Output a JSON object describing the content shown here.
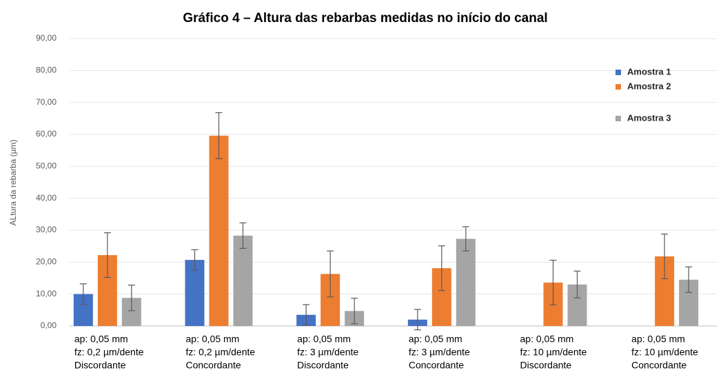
{
  "chart_data": {
    "type": "bar",
    "title": "Gráfico 4 – Altura das rebarbas medidas no início do canal",
    "y_label": "ALtura da rebarba (µm)",
    "categories": [
      [
        "ap: 0,05 mm",
        "fz: 0,2 µm/dente",
        "Discordante"
      ],
      [
        "ap: 0,05 mm",
        "fz: 0,2 µm/dente",
        "Concordante"
      ],
      [
        "ap: 0,05 mm",
        "fz: 3 µm/dente",
        "Discordante"
      ],
      [
        "ap: 0,05 mm",
        "fz: 3 µm/dente",
        "Concordante"
      ],
      [
        "ap: 0,05 mm",
        "fz: 10 µm/dente",
        "Discordante"
      ],
      [
        "ap: 0,05 mm",
        "fz: 10 µm/dente",
        "Concordante"
      ]
    ],
    "series": [
      {
        "name": "Amostra 1",
        "color": "#4472c4",
        "values": [
          10.0,
          20.7,
          3.5,
          2.0,
          null,
          null
        ],
        "errors": [
          3.2,
          3.2,
          3.2,
          3.2,
          null,
          null
        ]
      },
      {
        "name": "Amostra 2",
        "color": "#ed7d31",
        "values": [
          22.2,
          59.6,
          16.3,
          18.1,
          13.6,
          21.8
        ],
        "errors": [
          7.0,
          7.2,
          7.2,
          7.0,
          7.0,
          7.0
        ]
      },
      {
        "name": "Amostra 3",
        "color": "#a5a5a5",
        "values": [
          8.8,
          28.3,
          4.7,
          27.3,
          13.0,
          14.5
        ],
        "errors": [
          4.0,
          4.0,
          4.0,
          3.8,
          4.2,
          4.0
        ]
      }
    ],
    "ylim": [
      0,
      90
    ],
    "yticks": [
      {
        "value": 0,
        "label": "0,00"
      },
      {
        "value": 10,
        "label": "10,00"
      },
      {
        "value": 20,
        "label": "20,00"
      },
      {
        "value": 30,
        "label": "30,00"
      },
      {
        "value": 40,
        "label": "40,00"
      },
      {
        "value": 50,
        "label": "50,00"
      },
      {
        "value": 60,
        "label": "60,00"
      },
      {
        "value": 70,
        "label": "70,00"
      },
      {
        "value": 80,
        "label": "80,00"
      },
      {
        "value": 90,
        "label": "90,00"
      }
    ],
    "grid": true,
    "legend": "top-right"
  }
}
